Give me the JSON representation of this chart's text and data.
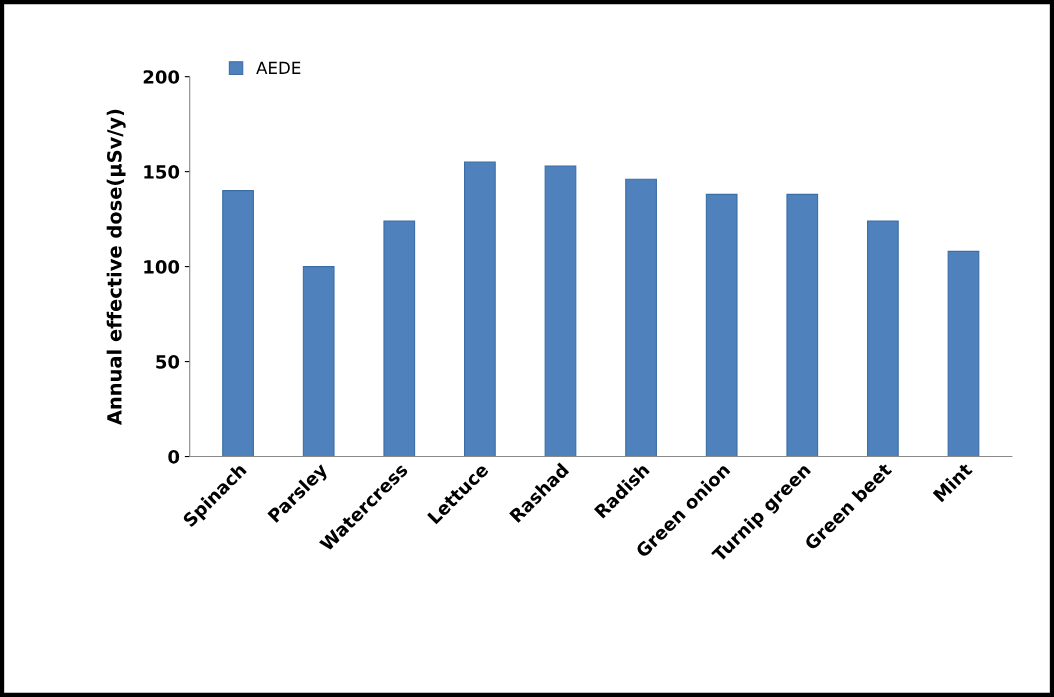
{
  "chart_data": {
    "type": "bar",
    "ylabel": "Annual effective dose(µSv/y)",
    "categories": [
      "Spinach",
      "Parsley",
      "Watercress",
      "Lettuce",
      "Rashad",
      "Radish",
      "Green onion",
      "Turnip green",
      "Green beet",
      "Mint"
    ],
    "series": [
      {
        "name": "AEDE",
        "color": "#4f81bd",
        "values": [
          140,
          100,
          124,
          155,
          153,
          146,
          138,
          138,
          124,
          108
        ]
      }
    ],
    "ylim": [
      0,
      200
    ],
    "yticks": [
      0,
      50,
      100,
      150,
      200
    ],
    "grid": false,
    "legend": "top left"
  }
}
